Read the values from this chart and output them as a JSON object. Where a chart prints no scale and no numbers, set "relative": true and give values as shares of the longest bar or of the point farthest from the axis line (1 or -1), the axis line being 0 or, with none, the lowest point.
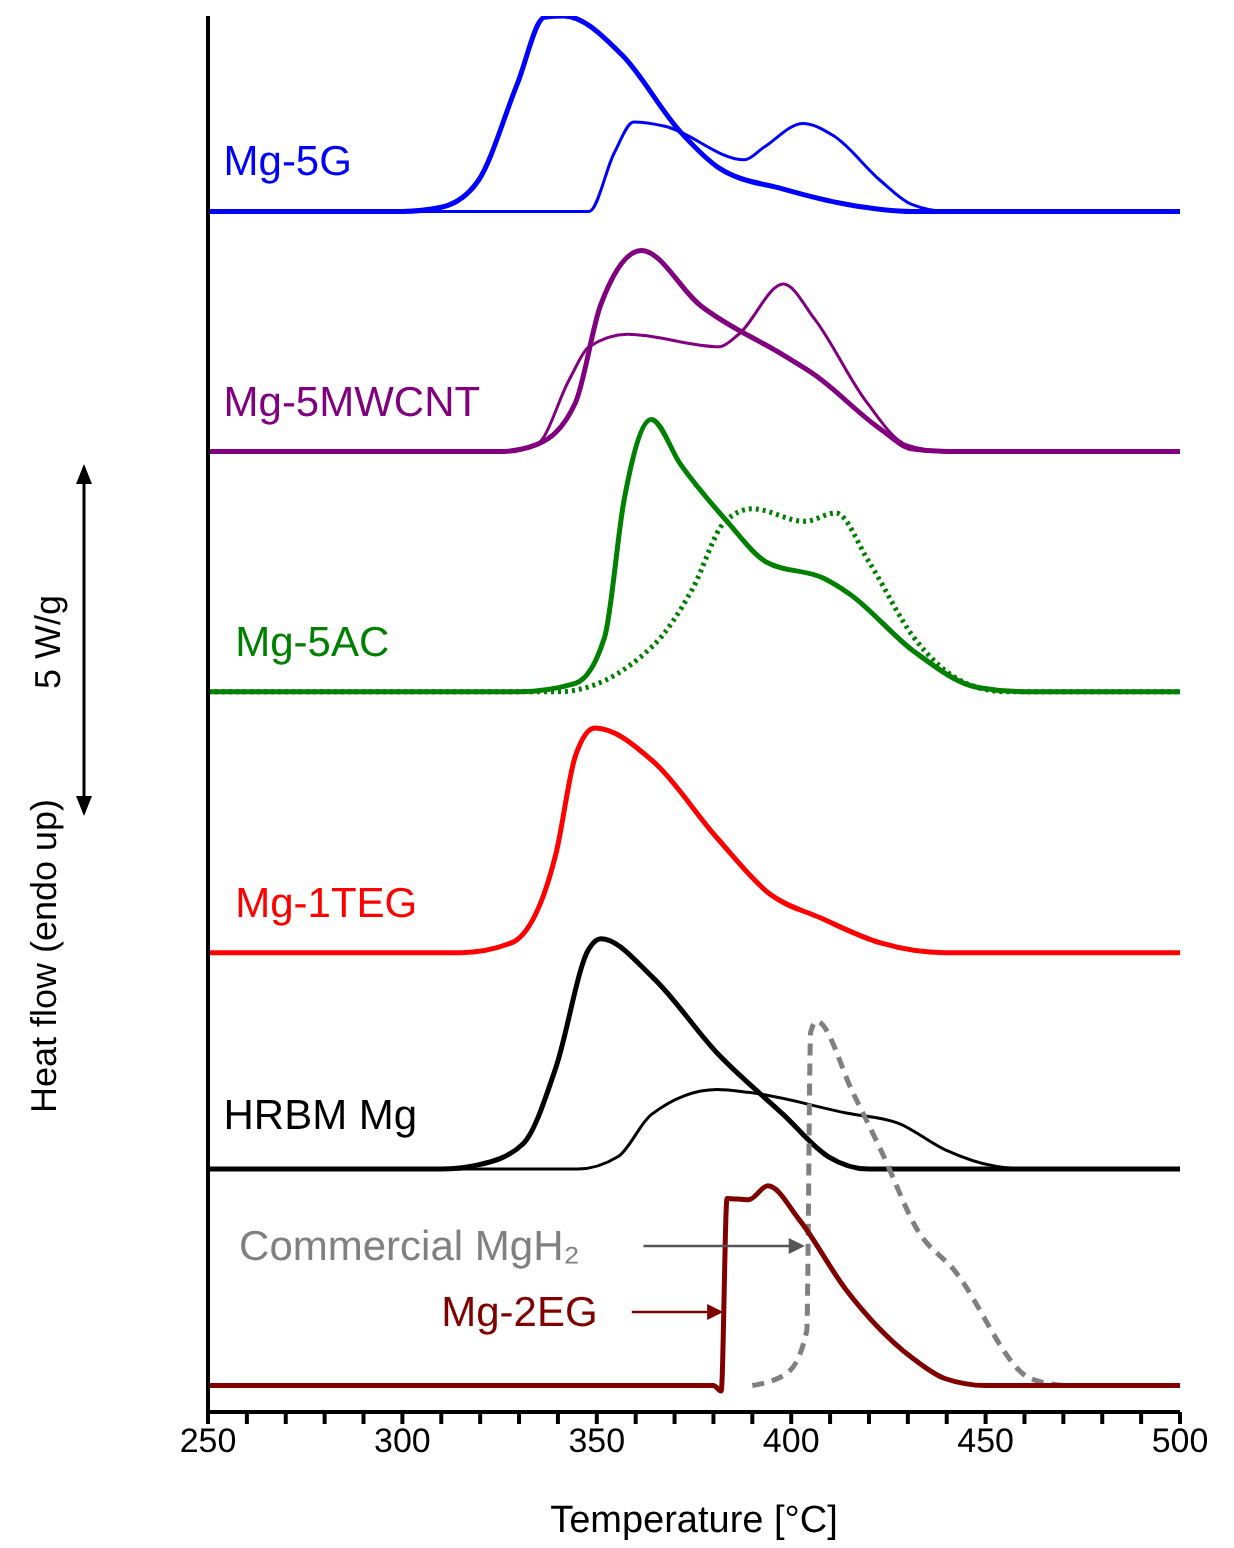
{
  "chart_data": {
    "type": "line",
    "relative": true,
    "xlabel": "Temperature [°C]",
    "ylabel": "Heat flow (endo up)",
    "annotations": [
      "5 W/g"
    ],
    "xlim": [
      250,
      500
    ],
    "xticks": [
      250,
      {
        "value": 260,
        "label": null
      },
      {
        "value": 270,
        "label": null
      },
      {
        "value": 280,
        "label": null
      },
      {
        "value": 290,
        "label": null
      },
      300,
      {
        "value": 310,
        "label": null
      },
      {
        "value": 320,
        "label": null
      },
      {
        "value": 330,
        "label": null
      },
      {
        "value": 340,
        "label": null
      },
      350,
      {
        "value": 360,
        "label": null
      },
      {
        "value": 370,
        "label": null
      },
      {
        "value": 380,
        "label": null
      },
      {
        "value": 390,
        "label": null
      },
      400,
      {
        "value": 410,
        "label": null
      },
      {
        "value": 420,
        "label": null
      },
      {
        "value": 430,
        "label": null
      },
      {
        "value": 440,
        "label": null
      },
      450,
      {
        "value": 460,
        "label": null
      },
      {
        "value": 470,
        "label": null
      },
      {
        "value": 480,
        "label": null
      },
      {
        "value": 490,
        "label": null
      },
      500
    ],
    "series": [
      {
        "name": "Mg-5G",
        "color": "#0000ff",
        "x": [
          250,
          300,
          310,
          319.5,
          329.5,
          336.5,
          341.5,
          356.5,
          371.5,
          381.5,
          398,
          414.5,
          431,
          500
        ],
        "values": [
          0.86,
          0.86,
          0.863,
          0.882,
          0.951,
          0.999,
          1,
          0.972,
          0.917,
          0.891,
          0.876,
          0.865,
          0.86,
          0.86
        ]
      },
      {
        "color": "#0000ff",
        "x": [
          250,
          348,
          354.5,
          359.5,
          367.5,
          388,
          393,
          403,
          411,
          423,
          431,
          440,
          500
        ],
        "values": [
          0.86,
          0.86,
          0.902,
          0.924,
          0.921,
          0.897,
          0.906,
          0.923,
          0.914,
          0.882,
          0.865,
          0.86,
          0.86
        ]
      },
      {
        "name": "Mg-5MWCNT",
        "color": "#800080",
        "x": [
          250,
          325,
          334.5,
          344.5,
          351,
          361.5,
          376.5,
          398,
          406,
          423,
          431,
          440,
          500
        ],
        "values": [
          0.688,
          0.688,
          0.693,
          0.723,
          0.793,
          0.832,
          0.793,
          0.757,
          0.743,
          0.704,
          0.69,
          0.688,
          0.688
        ]
      },
      {
        "color": "#800080",
        "x": [
          250,
          325,
          334.5,
          343,
          348,
          358,
          381.5,
          386.5,
          398,
          406,
          419.5,
          429.5,
          440,
          500
        ],
        "values": [
          0.688,
          0.688,
          0.693,
          0.74,
          0.763,
          0.772,
          0.763,
          0.772,
          0.808,
          0.783,
          0.723,
          0.693,
          0.688,
          0.688
        ]
      },
      {
        "name": "Mg-5AC",
        "color": "#008000",
        "x": [
          250,
          330,
          344.5,
          352,
          357,
          364,
          371.5,
          383.5,
          393.5,
          408.5,
          415,
          431.5,
          448,
          460,
          500
        ],
        "values": [
          0.516,
          0.516,
          0.522,
          0.555,
          0.653,
          0.711,
          0.679,
          0.638,
          0.609,
          0.597,
          0.586,
          0.545,
          0.519,
          0.516,
          0.516
        ]
      },
      {
        "color": "#008000",
        "line_style": "dotted",
        "x": [
          250,
          340,
          364.5,
          374.5,
          383,
          390,
          403.5,
          411.5,
          420,
          431.5,
          445,
          455,
          500
        ],
        "values": [
          0.516,
          0.516,
          0.549,
          0.589,
          0.638,
          0.647,
          0.638,
          0.644,
          0.609,
          0.555,
          0.522,
          0.516,
          0.516
        ]
      },
      {
        "name": "Mg-1TEG",
        "color": "#ff0000",
        "x": [
          250,
          315,
          328,
          339.5,
          344.5,
          349.5,
          364.5,
          381,
          394.5,
          407.5,
          423,
          439.5,
          500
        ],
        "values": [
          0.329,
          0.329,
          0.336,
          0.4,
          0.47,
          0.49,
          0.466,
          0.411,
          0.371,
          0.354,
          0.336,
          0.329,
          0.329
        ]
      },
      {
        "name": "HRBM Mg",
        "color": "#000000",
        "x": [
          250,
          310,
          319.5,
          331,
          339.5,
          348,
          351,
          364.5,
          381,
          398,
          409.5,
          420,
          500
        ],
        "values": [
          0.174,
          0.174,
          0.177,
          0.192,
          0.247,
          0.332,
          0.339,
          0.311,
          0.257,
          0.213,
          0.183,
          0.174,
          0.174
        ]
      },
      {
        "color": "#000000",
        "x": [
          250,
          345,
          355.5,
          364,
          381,
          389,
          414.5,
          427.5,
          439.5,
          452.5,
          460,
          500
        ],
        "values": [
          0.174,
          0.174,
          0.183,
          0.213,
          0.231,
          0.229,
          0.214,
          0.207,
          0.188,
          0.176,
          0.174,
          0.174
        ]
      },
      {
        "name": "Commercial MgH₂",
        "color": "#808080",
        "line_style": "dashed",
        "x": [
          390,
          399,
          404,
          405,
          406.5,
          416,
          423,
          433,
          441.5,
          461.5,
          470
        ],
        "values": [
          0.019,
          0.028,
          0.058,
          0.272,
          0.28,
          0.228,
          0.188,
          0.128,
          0.103,
          0.024,
          0.019
        ]
      },
      {
        "name": "Mg-2EG",
        "color": "#800000",
        "x": [
          250,
          380,
          382,
          383.5,
          389,
          394,
          402,
          414,
          431,
          439.5,
          450,
          500
        ],
        "values": [
          0.019,
          0.019,
          0.015,
          0.153,
          0.152,
          0.162,
          0.138,
          0.088,
          0.039,
          0.024,
          0.019,
          0.019
        ]
      }
    ]
  }
}
